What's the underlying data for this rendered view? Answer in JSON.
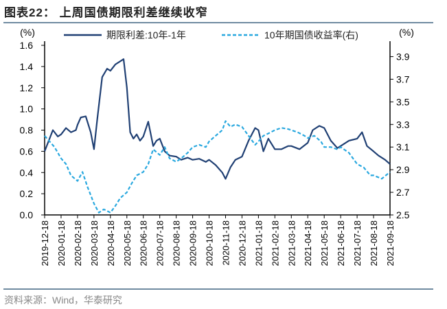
{
  "title": "图表22： 上周国债期限利差继续收窄",
  "source": "资料来源：Wind，华泰研究",
  "chart_data": {
    "type": "line",
    "left_unit": "(%)",
    "right_unit": "(%)",
    "ylim_left": [
      0,
      1.6
    ],
    "yticks_left": [
      "0.0",
      "0.2",
      "0.4",
      "0.6",
      "0.8",
      "1.0",
      "1.2",
      "1.4",
      "1.6"
    ],
    "ylim_right": [
      2.5,
      4.0
    ],
    "yticks_right": [
      "2.5",
      "2.7",
      "2.9",
      "3.1",
      "3.3",
      "3.5",
      "3.7",
      "3.9"
    ],
    "xticks": [
      "2019-12-18",
      "2020-01-18",
      "2020-02-18",
      "2020-03-18",
      "2020-04-18",
      "2020-05-18",
      "2020-06-18",
      "2020-07-18",
      "2020-08-18",
      "2020-09-18",
      "2020-10-18",
      "2020-11-18",
      "2020-12-18",
      "2021-01-18",
      "2021-02-18",
      "2021-03-18",
      "2021-04-18",
      "2021-05-18",
      "2021-06-18",
      "2021-07-18",
      "2021-08-18",
      "2021-09-18"
    ],
    "series": [
      {
        "name": "期限利差:10年-1年",
        "axis": "left",
        "color": "#1f3f73",
        "style": "solid",
        "x": [
          0,
          0.3,
          0.5,
          0.8,
          1,
          1.3,
          1.6,
          1.9,
          2,
          2.2,
          2.5,
          2.8,
          3,
          3.2,
          3.5,
          3.8,
          4,
          4.3,
          4.6,
          4.8,
          5,
          5.2,
          5.4,
          5.6,
          5.8,
          6,
          6.3,
          6.6,
          6.8,
          7,
          7.3,
          7.6,
          8,
          8.3,
          8.7,
          9,
          9.4,
          9.8,
          10,
          10.4,
          10.8,
          11,
          11.3,
          11.6,
          12,
          12.4,
          12.8,
          13,
          13.3,
          13.6,
          14,
          14.4,
          14.8,
          15,
          15.5,
          16,
          16.3,
          16.7,
          17,
          17.4,
          17.8,
          18,
          18.5,
          19,
          19.3,
          19.6,
          20,
          20.3,
          20.7,
          21
        ],
        "values": [
          0.6,
          0.72,
          0.8,
          0.74,
          0.76,
          0.82,
          0.78,
          0.8,
          0.85,
          0.92,
          0.93,
          0.78,
          0.62,
          0.9,
          1.3,
          1.38,
          1.36,
          1.42,
          1.45,
          1.47,
          1.2,
          0.78,
          0.72,
          0.76,
          0.7,
          0.74,
          0.88,
          0.65,
          0.7,
          0.72,
          0.6,
          0.56,
          0.55,
          0.52,
          0.54,
          0.52,
          0.53,
          0.5,
          0.52,
          0.47,
          0.4,
          0.34,
          0.45,
          0.52,
          0.55,
          0.7,
          0.82,
          0.8,
          0.6,
          0.72,
          0.62,
          0.62,
          0.65,
          0.65,
          0.62,
          0.68,
          0.8,
          0.84,
          0.82,
          0.7,
          0.63,
          0.65,
          0.7,
          0.72,
          0.78,
          0.65,
          0.6,
          0.56,
          0.52,
          0.48
        ]
      },
      {
        "name": "10年期国债收益率(右)",
        "axis": "right",
        "color": "#29a8df",
        "style": "dashed",
        "x": [
          0,
          0.3,
          0.6,
          1,
          1.3,
          1.6,
          2,
          2.3,
          2.6,
          3,
          3.3,
          3.6,
          4,
          4.3,
          4.6,
          5,
          5.3,
          5.6,
          6,
          6.3,
          6.6,
          7,
          7.3,
          7.6,
          8,
          8.3,
          8.7,
          9,
          9.4,
          9.8,
          10,
          10.4,
          10.8,
          11,
          11.3,
          11.6,
          12,
          12.4,
          12.8,
          13,
          13.3,
          13.6,
          14,
          14.4,
          14.8,
          15,
          15.4,
          15.8,
          16,
          16.4,
          16.8,
          17,
          17.4,
          17.8,
          18,
          18.5,
          19,
          19.4,
          19.8,
          20,
          20.5,
          21
        ],
        "values": [
          3.2,
          3.15,
          3.1,
          3.0,
          2.95,
          2.85,
          2.8,
          2.88,
          2.75,
          2.6,
          2.52,
          2.55,
          2.52,
          2.58,
          2.65,
          2.7,
          2.78,
          2.85,
          2.88,
          2.95,
          3.08,
          3.03,
          3.1,
          3.0,
          2.97,
          3.0,
          3.05,
          3.1,
          3.12,
          3.1,
          3.15,
          3.2,
          3.25,
          3.33,
          3.28,
          3.3,
          3.28,
          3.2,
          3.12,
          3.15,
          3.2,
          3.22,
          3.25,
          3.27,
          3.26,
          3.25,
          3.23,
          3.2,
          3.18,
          3.2,
          3.15,
          3.1,
          3.1,
          3.08,
          3.1,
          3.05,
          2.95,
          2.92,
          2.85,
          2.85,
          2.82,
          2.88
        ]
      }
    ]
  }
}
